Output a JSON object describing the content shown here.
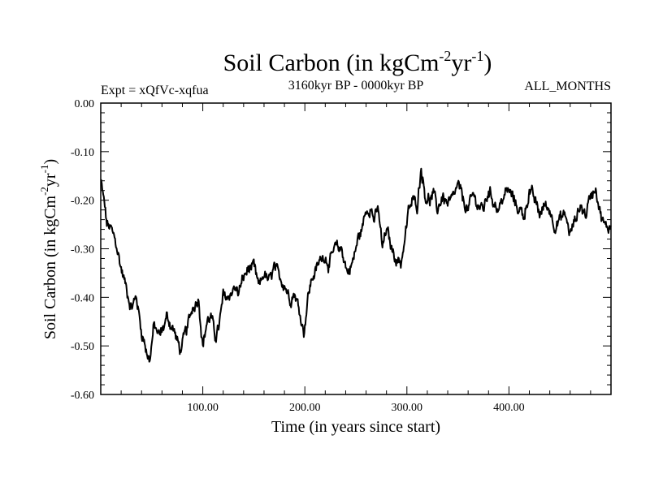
{
  "chart_data": {
    "type": "line",
    "title": {
      "main": "Soil Carbon (in kgCm",
      "sup1": "-2",
      "mid": "yr",
      "sup2": "-1",
      "end": ")"
    },
    "experiment": "Expt = xQfVc-xqfua",
    "period": "3160kyr BP - 0000kyr BP",
    "months": "ALL_MONTHS",
    "xlabel": "Time (in years since start)",
    "ylabel": {
      "main": "Soil Carbon (in kgCm",
      "sup1": "-2",
      "mid": "yr",
      "sup2": "-1",
      "end": ")"
    },
    "xlim": [
      0,
      500
    ],
    "ylim": [
      -0.6,
      0.0
    ],
    "x_ticks": [
      {
        "value": 100,
        "label": "100.00"
      },
      {
        "value": 200,
        "label": "200.00"
      },
      {
        "value": 300,
        "label": "300.00"
      },
      {
        "value": 400,
        "label": "400.00"
      }
    ],
    "y_ticks": [
      {
        "value": 0.0,
        "label": "0.00"
      },
      {
        "value": -0.1,
        "label": "-0.10"
      },
      {
        "value": -0.2,
        "label": "-0.20"
      },
      {
        "value": -0.3,
        "label": "-0.30"
      },
      {
        "value": -0.4,
        "label": "-0.40"
      },
      {
        "value": -0.5,
        "label": "-0.50"
      },
      {
        "value": -0.6,
        "label": "-0.60"
      }
    ],
    "series": [
      {
        "name": "Soil Carbon",
        "x": [
          0,
          3,
          6,
          10,
          15,
          20,
          25,
          30,
          35,
          40,
          45,
          48,
          52,
          58,
          65,
          72,
          78,
          84,
          90,
          96,
          100,
          104,
          108,
          112,
          116,
          120,
          125,
          130,
          135,
          140,
          145,
          150,
          155,
          160,
          165,
          170,
          175,
          180,
          185,
          190,
          195,
          199,
          203,
          207,
          212,
          218,
          224,
          230,
          236,
          242,
          248,
          252,
          256,
          260,
          264,
          268,
          272,
          276,
          280,
          285,
          290,
          294,
          298,
          302,
          306,
          310,
          314,
          318,
          322,
          326,
          330,
          335,
          340,
          345,
          350,
          355,
          360,
          365,
          370,
          375,
          380,
          385,
          390,
          395,
          400,
          405,
          410,
          415,
          420,
          425,
          430,
          435,
          440,
          445,
          450,
          455,
          460,
          465,
          470,
          475,
          480,
          485,
          490,
          495,
          500
        ],
        "values": [
          -0.16,
          -0.2,
          -0.25,
          -0.26,
          -0.29,
          -0.34,
          -0.38,
          -0.42,
          -0.4,
          -0.47,
          -0.51,
          -0.53,
          -0.46,
          -0.48,
          -0.44,
          -0.47,
          -0.51,
          -0.47,
          -0.42,
          -0.4,
          -0.5,
          -0.45,
          -0.44,
          -0.48,
          -0.46,
          -0.4,
          -0.4,
          -0.38,
          -0.39,
          -0.36,
          -0.34,
          -0.34,
          -0.38,
          -0.35,
          -0.37,
          -0.34,
          -0.36,
          -0.37,
          -0.4,
          -0.39,
          -0.43,
          -0.47,
          -0.4,
          -0.36,
          -0.34,
          -0.31,
          -0.33,
          -0.3,
          -0.3,
          -0.35,
          -0.32,
          -0.28,
          -0.26,
          -0.22,
          -0.21,
          -0.24,
          -0.22,
          -0.3,
          -0.26,
          -0.3,
          -0.32,
          -0.33,
          -0.28,
          -0.22,
          -0.2,
          -0.21,
          -0.13,
          -0.19,
          -0.2,
          -0.19,
          -0.22,
          -0.19,
          -0.21,
          -0.2,
          -0.17,
          -0.2,
          -0.22,
          -0.19,
          -0.21,
          -0.22,
          -0.18,
          -0.2,
          -0.22,
          -0.19,
          -0.18,
          -0.2,
          -0.22,
          -0.23,
          -0.18,
          -0.2,
          -0.23,
          -0.21,
          -0.22,
          -0.25,
          -0.24,
          -0.23,
          -0.27,
          -0.24,
          -0.21,
          -0.23,
          -0.19,
          -0.17,
          -0.23,
          -0.26,
          -0.25
        ]
      }
    ]
  }
}
